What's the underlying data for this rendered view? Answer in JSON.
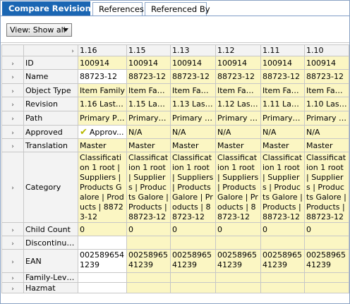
{
  "tabs": [
    "Compare Revisions",
    "References",
    "Referenced By"
  ],
  "view_button": "View: Show all",
  "columns": [
    "1.16",
    "1.15",
    "1.13",
    "1.12",
    "1.11",
    "1.10"
  ],
  "rows": [
    {
      "label": "ID",
      "values": [
        "100914",
        "100914",
        "100914",
        "100914",
        "100914",
        "100914"
      ]
    },
    {
      "label": "Name",
      "values": [
        "88723-12",
        "88723-12",
        "88723-12",
        "88723-12",
        "88723-12",
        "88723-12"
      ]
    },
    {
      "label": "Object Type",
      "values": [
        "Item Family",
        "Item Family",
        "Item Family",
        "Item Family",
        "Item Family",
        "Item Family"
      ]
    },
    {
      "label": "Revision",
      "values": [
        "1.16 Last e...",
        "1.15 Last ...",
        "1.13 Last ...",
        "1.12 Last ...",
        "1.11 Last ...",
        "1.10 Last ..."
      ]
    },
    {
      "label": "Path",
      "values": [
        "Primary Pro...",
        "Primary Pr...",
        "Primary Pr...",
        "Primary Pr...",
        "Primary Pr...",
        "Primary Pr..."
      ]
    },
    {
      "label": "Approved",
      "values": [
        "Approv...",
        "N/A",
        "N/A",
        "N/A",
        "N/A",
        "N/A"
      ]
    },
    {
      "label": "Translation",
      "values": [
        "Master",
        "Master",
        "Master",
        "Master",
        "Master",
        "Master"
      ]
    },
    {
      "label": "Category",
      "values": [
        "Classification 1 root | Suppliers | Products Galore | Products | 88723-12",
        "Classification 1 root | Suppliers | Products Galore | Products | 88723-12",
        "Classification 1 root | Suppliers | Products Galore | Products | 88723-12",
        "Classification 1 root | Suppliers | Products Galore | Products | 88723-12",
        "Classification 1 root | Suppliers | Products Galore | Products | 88723-12",
        "Classification 1 root | Suppliers | Products Galore | Products | 88723-12"
      ]
    },
    {
      "label": "Child Count",
      "values": [
        "0",
        "0",
        "0",
        "0",
        "0",
        "0"
      ]
    },
    {
      "label": "Discontinued",
      "values": [
        "",
        "",
        "",
        "",
        "",
        ""
      ]
    },
    {
      "label": "EAN",
      "values": [
        "0025896541239",
        "0025896541239",
        "0025896541239",
        "0025896541239",
        "0025896541239",
        "0025896541239"
      ]
    },
    {
      "label": "Family-Level ...",
      "values": [
        "",
        "",
        "",
        "",
        "",
        ""
      ]
    },
    {
      "label": "Hazmat",
      "values": [
        "",
        "",
        "",
        "",
        "",
        ""
      ]
    }
  ],
  "colors": {
    "tab_active": "#1a66b3",
    "changed_cell": "#fbf6c3"
  }
}
